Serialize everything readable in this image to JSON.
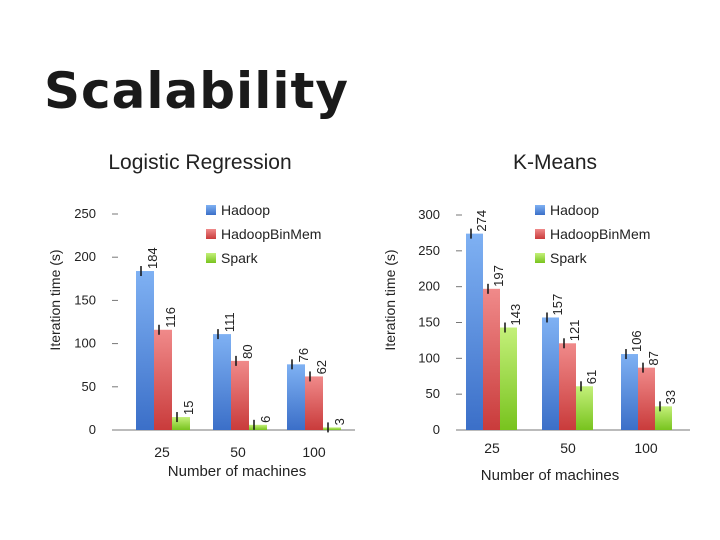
{
  "slide": {
    "title": "Scalability"
  },
  "colors": {
    "Hadoop": "#4f8fe6",
    "Hadoop.Bin.Mem": "#e25555",
    "Spark": "#9cdc3c"
  },
  "chart_data": [
    {
      "type": "bar",
      "title": "Logistic Regression",
      "xlabel": "Number of machines",
      "ylabel": "Iteration time (s)",
      "categories": [
        "25",
        "50",
        "100"
      ],
      "ylim": [
        0,
        250
      ],
      "yticks": [
        0,
        50,
        100,
        150,
        200,
        250
      ],
      "legend": "top-right",
      "series": [
        {
          "name": "Hadoop",
          "values": [
            184,
            111,
            76
          ],
          "labels": [
            "184",
            "111",
            "76"
          ]
        },
        {
          "name": "HadoopBinMem",
          "values": [
            116,
            80,
            62
          ],
          "labels": [
            "116",
            "80",
            "62"
          ]
        },
        {
          "name": "Spark",
          "values": [
            15,
            6,
            3
          ],
          "labels": [
            "15",
            "6",
            "3"
          ]
        }
      ]
    },
    {
      "type": "bar",
      "title": "K-Means",
      "xlabel": "Number of machines",
      "ylabel": "Iteration time (s)",
      "categories": [
        "25",
        "50",
        "100"
      ],
      "ylim": [
        0,
        300
      ],
      "yticks": [
        0,
        50,
        100,
        150,
        200,
        250,
        300
      ],
      "legend": "top-right",
      "series": [
        {
          "name": "Hadoop",
          "values": [
            274,
            157,
            106
          ],
          "labels": [
            "274",
            "157",
            "106"
          ]
        },
        {
          "name": "HadoopBinMem",
          "values": [
            197,
            121,
            87
          ],
          "labels": [
            "197",
            "121",
            "87"
          ]
        },
        {
          "name": "Spark",
          "values": [
            143,
            61,
            33
          ],
          "labels": [
            "143",
            "61",
            "33"
          ]
        }
      ]
    }
  ]
}
